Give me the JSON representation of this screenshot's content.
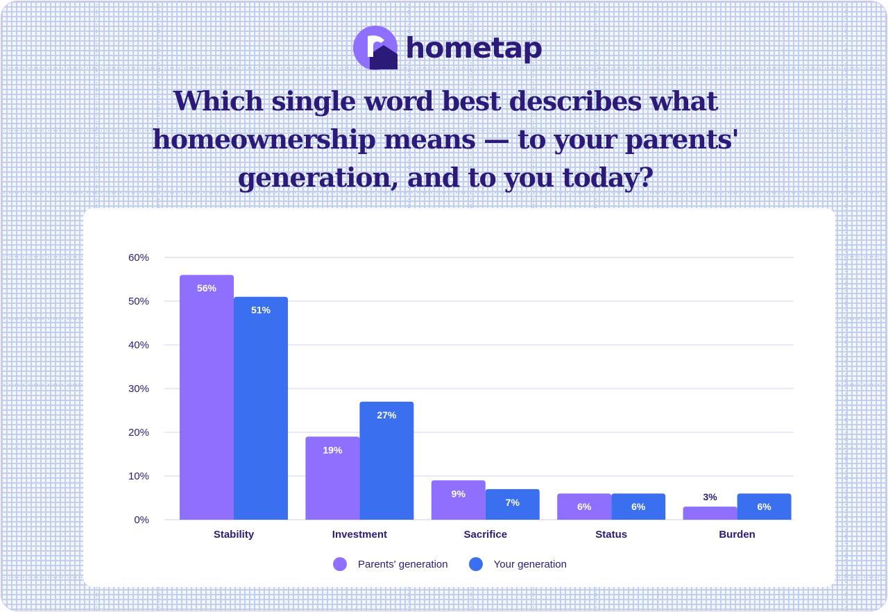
{
  "brand": {
    "name": "hometap",
    "colors": {
      "brand": "#2b1a78",
      "logo": "#8f6ffd",
      "parents": "#8f6ffd",
      "yours": "#3a6ff0"
    }
  },
  "headline": "Which single word best describes what homeownership means — to your parents' generation, and to you today?",
  "chart_data": {
    "type": "bar",
    "categories": [
      "Stability",
      "Investment",
      "Sacrifice",
      "Status",
      "Burden"
    ],
    "series": [
      {
        "name": "Parents' generation",
        "color": "#8f6ffd",
        "values": [
          56,
          19,
          9,
          6,
          3
        ],
        "labels": [
          "56%",
          "19%",
          "9%",
          "6%",
          "3%"
        ]
      },
      {
        "name": "Your generation",
        "color": "#3a6ff0",
        "values": [
          51,
          27,
          7,
          6,
          6
        ],
        "labels": [
          "51%",
          "27%",
          "7%",
          "6%",
          "6%"
        ]
      }
    ],
    "ylim": [
      0,
      60
    ],
    "yticks": [
      "0%",
      "10%",
      "20%",
      "30%",
      "40%",
      "50%",
      "60%"
    ],
    "grid": true,
    "legend": "bottom-center"
  }
}
